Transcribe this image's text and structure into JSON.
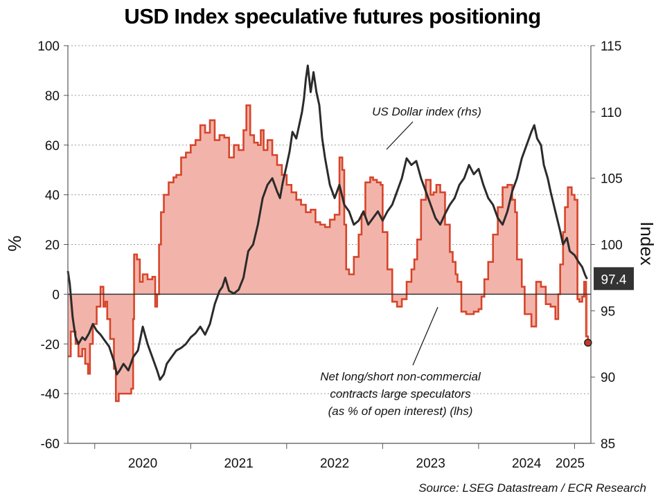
{
  "chart_data": {
    "type": "area",
    "title": "USD Index speculative futures positioning",
    "ylabel_left": "%",
    "ylabel_right": "Index",
    "source": "Source: LSEG Datastream / ECR Research",
    "x_tick_labels": [
      "2020",
      "2021",
      "2022",
      "2023",
      "2024",
      "2025"
    ],
    "x_range": [
      2019.72,
      2025.17
    ],
    "ylim_left": [
      -60,
      100
    ],
    "ylim_right": [
      85,
      115
    ],
    "y_ticks_left": [
      100,
      80,
      60,
      40,
      20,
      0,
      -20,
      -40,
      -60
    ],
    "y_ticks_right": [
      115,
      110,
      105,
      100,
      95,
      90,
      85
    ],
    "y_tick_labels_left": [
      "100",
      "80",
      "60",
      "40",
      "20",
      "0",
      "-20",
      "-40",
      "-60"
    ],
    "y_tick_labels_right": [
      "115",
      "110",
      "105",
      "100",
      "95",
      "90",
      "85"
    ],
    "grid": true,
    "last_value_label": "97.4",
    "last_value": 97.4,
    "last_position_value": -19.5,
    "colors": {
      "positioning_line": "#d6452a",
      "positioning_fill": "#f2b4aa",
      "index_line": "#2b2b2b",
      "badge": "#333333"
    },
    "annotations": [
      {
        "lines": [
          "US Dollar index (rhs)"
        ]
      },
      {
        "lines": [
          "Net long/short non-commercial",
          "contracts large speculators",
          "(as % of open interest) (lhs)"
        ]
      }
    ],
    "series": [
      {
        "axis": "left",
        "type": "step-area",
        "points": [
          [
            2019.72,
            -25
          ],
          [
            2019.75,
            -15
          ],
          [
            2019.8,
            -20
          ],
          [
            2019.83,
            -25
          ],
          [
            2019.87,
            -22
          ],
          [
            2019.9,
            -28
          ],
          [
            2019.93,
            -32
          ],
          [
            2019.95,
            -20
          ],
          [
            2019.98,
            -12
          ],
          [
            2020.02,
            -5
          ],
          [
            2020.06,
            3
          ],
          [
            2020.09,
            -5
          ],
          [
            2020.11,
            -3
          ],
          [
            2020.13,
            -10
          ],
          [
            2020.16,
            -18
          ],
          [
            2020.2,
            -30
          ],
          [
            2020.22,
            -43
          ],
          [
            2020.25,
            -40
          ],
          [
            2020.3,
            -40
          ],
          [
            2020.35,
            -40
          ],
          [
            2020.38,
            -38
          ],
          [
            2020.4,
            -10
          ],
          [
            2020.41,
            16
          ],
          [
            2020.44,
            14
          ],
          [
            2020.47,
            5
          ],
          [
            2020.5,
            8
          ],
          [
            2020.55,
            6
          ],
          [
            2020.6,
            7
          ],
          [
            2020.63,
            -5
          ],
          [
            2020.65,
            0
          ],
          [
            2020.67,
            20
          ],
          [
            2020.69,
            33
          ],
          [
            2020.72,
            40
          ],
          [
            2020.77,
            45
          ],
          [
            2020.82,
            47
          ],
          [
            2020.85,
            48
          ],
          [
            2020.9,
            55
          ],
          [
            2020.95,
            57
          ],
          [
            2021.0,
            60
          ],
          [
            2021.05,
            62
          ],
          [
            2021.1,
            68
          ],
          [
            2021.15,
            65
          ],
          [
            2021.2,
            70
          ],
          [
            2021.25,
            62
          ],
          [
            2021.3,
            64
          ],
          [
            2021.35,
            63
          ],
          [
            2021.4,
            55
          ],
          [
            2021.45,
            60
          ],
          [
            2021.5,
            58
          ],
          [
            2021.55,
            66
          ],
          [
            2021.58,
            76
          ],
          [
            2021.62,
            64
          ],
          [
            2021.66,
            61
          ],
          [
            2021.7,
            60
          ],
          [
            2021.73,
            66
          ],
          [
            2021.76,
            58
          ],
          [
            2021.8,
            62
          ],
          [
            2021.85,
            56
          ],
          [
            2021.9,
            52
          ],
          [
            2021.95,
            48
          ],
          [
            2022.0,
            44
          ],
          [
            2022.05,
            41
          ],
          [
            2022.1,
            38
          ],
          [
            2022.15,
            36
          ],
          [
            2022.2,
            33
          ],
          [
            2022.25,
            34
          ],
          [
            2022.3,
            29
          ],
          [
            2022.35,
            28
          ],
          [
            2022.4,
            27
          ],
          [
            2022.45,
            30
          ],
          [
            2022.5,
            32
          ],
          [
            2022.55,
            55
          ],
          [
            2022.58,
            50
          ],
          [
            2022.6,
            28
          ],
          [
            2022.62,
            10
          ],
          [
            2022.65,
            8
          ],
          [
            2022.7,
            15
          ],
          [
            2022.75,
            24
          ],
          [
            2022.78,
            32
          ],
          [
            2022.82,
            45
          ],
          [
            2022.87,
            47
          ],
          [
            2022.9,
            46
          ],
          [
            2022.94,
            45
          ],
          [
            2022.98,
            44
          ],
          [
            2023.0,
            25
          ],
          [
            2023.05,
            10
          ],
          [
            2023.1,
            -3
          ],
          [
            2023.15,
            -5
          ],
          [
            2023.2,
            -2
          ],
          [
            2023.25,
            5
          ],
          [
            2023.3,
            10
          ],
          [
            2023.33,
            14
          ],
          [
            2023.36,
            22
          ],
          [
            2023.4,
            38
          ],
          [
            2023.45,
            46
          ],
          [
            2023.5,
            40
          ],
          [
            2023.53,
            41
          ],
          [
            2023.56,
            44
          ],
          [
            2023.6,
            41
          ],
          [
            2023.65,
            28
          ],
          [
            2023.7,
            17
          ],
          [
            2023.73,
            13
          ],
          [
            2023.76,
            8
          ],
          [
            2023.78,
            5
          ],
          [
            2023.82,
            -7
          ],
          [
            2023.87,
            -8
          ],
          [
            2023.9,
            -8
          ],
          [
            2023.95,
            -7
          ],
          [
            2024.0,
            -6
          ],
          [
            2024.03,
            -1
          ],
          [
            2024.06,
            6
          ],
          [
            2024.1,
            13
          ],
          [
            2024.15,
            24
          ],
          [
            2024.2,
            35
          ],
          [
            2024.25,
            43
          ],
          [
            2024.3,
            44
          ],
          [
            2024.35,
            38
          ],
          [
            2024.38,
            33
          ],
          [
            2024.4,
            14
          ],
          [
            2024.45,
            3
          ],
          [
            2024.48,
            -8
          ],
          [
            2024.55,
            -13
          ],
          [
            2024.6,
            5
          ],
          [
            2024.65,
            3
          ],
          [
            2024.7,
            -4
          ],
          [
            2024.75,
            -5
          ],
          [
            2024.8,
            -10
          ],
          [
            2024.83,
            0
          ],
          [
            2024.85,
            12
          ],
          [
            2024.88,
            25
          ],
          [
            2024.9,
            35
          ],
          [
            2024.93,
            43
          ],
          [
            2024.97,
            40
          ],
          [
            2025.0,
            38
          ],
          [
            2025.03,
            -2
          ],
          [
            2025.05,
            -3
          ],
          [
            2025.08,
            -1
          ],
          [
            2025.1,
            5
          ],
          [
            2025.12,
            -17
          ],
          [
            2025.14,
            -19.5
          ]
        ]
      },
      {
        "axis": "right",
        "type": "line",
        "points": [
          [
            2019.72,
            98
          ],
          [
            2019.74,
            97
          ],
          [
            2019.77,
            94.5
          ],
          [
            2019.8,
            93
          ],
          [
            2019.83,
            92.5
          ],
          [
            2019.87,
            93
          ],
          [
            2019.9,
            92.8
          ],
          [
            2019.94,
            93.3
          ],
          [
            2019.98,
            94
          ],
          [
            2020.02,
            93.5
          ],
          [
            2020.06,
            93.2
          ],
          [
            2020.1,
            92.8
          ],
          [
            2020.15,
            92.3
          ],
          [
            2020.2,
            91.2
          ],
          [
            2020.23,
            90.2
          ],
          [
            2020.26,
            90.5
          ],
          [
            2020.3,
            91
          ],
          [
            2020.35,
            90.5
          ],
          [
            2020.4,
            91.5
          ],
          [
            2020.45,
            92
          ],
          [
            2020.5,
            93.8
          ],
          [
            2020.55,
            92.5
          ],
          [
            2020.6,
            91.5
          ],
          [
            2020.65,
            90.5
          ],
          [
            2020.68,
            89.8
          ],
          [
            2020.72,
            90.2
          ],
          [
            2020.75,
            91
          ],
          [
            2020.8,
            91.5
          ],
          [
            2020.85,
            92
          ],
          [
            2020.9,
            92.2
          ],
          [
            2020.95,
            92.5
          ],
          [
            2021.0,
            93
          ],
          [
            2021.05,
            93.3
          ],
          [
            2021.1,
            93.8
          ],
          [
            2021.15,
            93.2
          ],
          [
            2021.2,
            94
          ],
          [
            2021.25,
            95.5
          ],
          [
            2021.3,
            96.5
          ],
          [
            2021.33,
            96.8
          ],
          [
            2021.36,
            97.5
          ],
          [
            2021.4,
            96.5
          ],
          [
            2021.45,
            96.3
          ],
          [
            2021.5,
            96.6
          ],
          [
            2021.55,
            97.5
          ],
          [
            2021.6,
            99.5
          ],
          [
            2021.65,
            100
          ],
          [
            2021.7,
            101.5
          ],
          [
            2021.75,
            103.5
          ],
          [
            2021.8,
            104.5
          ],
          [
            2021.85,
            105
          ],
          [
            2021.9,
            104
          ],
          [
            2021.93,
            103.5
          ],
          [
            2021.96,
            104.7
          ],
          [
            2022.0,
            106
          ],
          [
            2022.03,
            107
          ],
          [
            2022.06,
            108.5
          ],
          [
            2022.1,
            108
          ],
          [
            2022.13,
            109
          ],
          [
            2022.16,
            110
          ],
          [
            2022.18,
            111
          ],
          [
            2022.2,
            112.5
          ],
          [
            2022.22,
            113.5
          ],
          [
            2022.25,
            111.5
          ],
          [
            2022.28,
            113
          ],
          [
            2022.31,
            111.5
          ],
          [
            2022.34,
            110.5
          ],
          [
            2022.37,
            108
          ],
          [
            2022.4,
            106.5
          ],
          [
            2022.45,
            104.5
          ],
          [
            2022.5,
            103.5
          ],
          [
            2022.55,
            104.5
          ],
          [
            2022.6,
            103
          ],
          [
            2022.65,
            102.5
          ],
          [
            2022.7,
            101.5
          ],
          [
            2022.75,
            101.8
          ],
          [
            2022.8,
            102.5
          ],
          [
            2022.85,
            101.5
          ],
          [
            2022.9,
            102
          ],
          [
            2022.95,
            102.5
          ],
          [
            2023.0,
            101.8
          ],
          [
            2023.05,
            102.5
          ],
          [
            2023.1,
            103
          ],
          [
            2023.15,
            104
          ],
          [
            2023.2,
            105
          ],
          [
            2023.25,
            106.5
          ],
          [
            2023.3,
            106
          ],
          [
            2023.35,
            106.3
          ],
          [
            2023.4,
            105
          ],
          [
            2023.45,
            104
          ],
          [
            2023.5,
            103
          ],
          [
            2023.55,
            102
          ],
          [
            2023.6,
            101.5
          ],
          [
            2023.65,
            102.3
          ],
          [
            2023.7,
            103
          ],
          [
            2023.75,
            103.5
          ],
          [
            2023.8,
            104.5
          ],
          [
            2023.85,
            105
          ],
          [
            2023.9,
            106
          ],
          [
            2023.95,
            105.3
          ],
          [
            2024.0,
            105.7
          ],
          [
            2024.05,
            104.5
          ],
          [
            2024.1,
            103.5
          ],
          [
            2024.15,
            103
          ],
          [
            2024.2,
            102
          ],
          [
            2024.25,
            101.5
          ],
          [
            2024.3,
            102.5
          ],
          [
            2024.35,
            104
          ],
          [
            2024.4,
            105
          ],
          [
            2024.45,
            106.5
          ],
          [
            2024.5,
            107.5
          ],
          [
            2024.55,
            108.5
          ],
          [
            2024.58,
            109
          ],
          [
            2024.61,
            108
          ],
          [
            2024.65,
            107.5
          ],
          [
            2024.68,
            106
          ],
          [
            2024.72,
            105
          ],
          [
            2024.75,
            104
          ],
          [
            2024.8,
            102.5
          ],
          [
            2024.85,
            101
          ],
          [
            2024.88,
            100
          ],
          [
            2024.92,
            100.5
          ],
          [
            2024.95,
            99.5
          ],
          [
            2025.0,
            99.2
          ],
          [
            2025.04,
            98.7
          ],
          [
            2025.08,
            98.3
          ],
          [
            2025.11,
            97.7
          ],
          [
            2025.13,
            97.4
          ]
        ]
      }
    ]
  }
}
